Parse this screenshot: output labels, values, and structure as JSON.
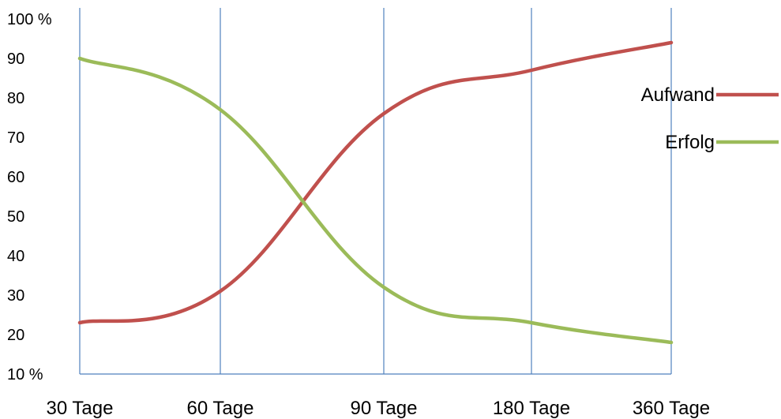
{
  "chart_data": {
    "type": "line",
    "title": "",
    "xlabel": "",
    "ylabel": "",
    "categories": [
      "30 Tage",
      "60 Tage",
      "90 Tage",
      "180 Tage",
      "360 Tage"
    ],
    "y_ticks": [
      "100 %",
      "90",
      "80",
      "70",
      "60",
      "50",
      "40",
      "30",
      "20",
      "10 %"
    ],
    "y_tick_values": [
      100,
      90,
      80,
      70,
      60,
      50,
      40,
      30,
      20,
      10
    ],
    "ylim": [
      10,
      100
    ],
    "grid": "vertical lines at categories",
    "legend_position": "right",
    "series": [
      {
        "name": "Aufwand",
        "color": "#c0504d",
        "values": [
          23,
          31,
          76,
          87,
          94
        ]
      },
      {
        "name": "Erfolg",
        "color": "#9bbb59",
        "values": [
          90,
          77,
          32,
          23,
          18
        ]
      }
    ],
    "gridline_color": "#4f81bd"
  }
}
